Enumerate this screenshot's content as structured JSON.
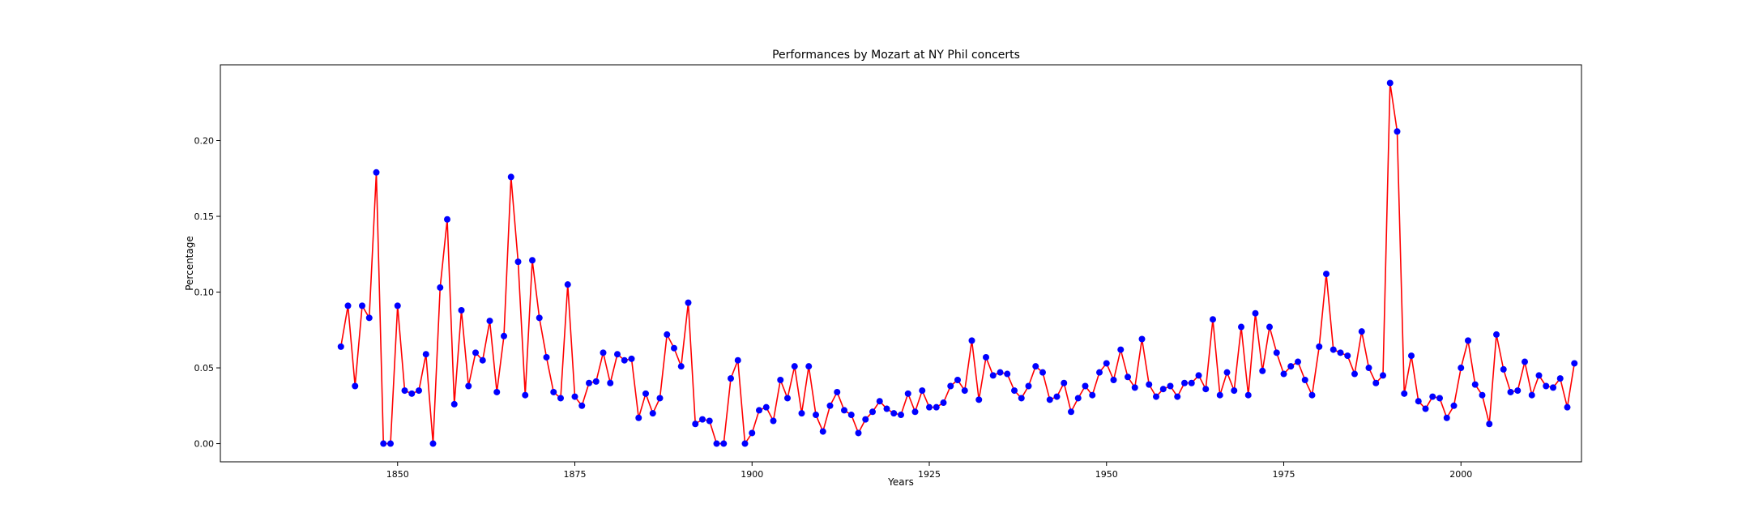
{
  "chart_data": {
    "type": "line",
    "title": "Performances by Mozart at NY Phil concerts",
    "xlabel": "Years",
    "ylabel": "Percentage",
    "xlim": [
      1825,
      2017
    ],
    "ylim": [
      -0.012,
      0.25
    ],
    "xticks": [
      "1850",
      "1875",
      "1900",
      "1925",
      "1950",
      "1975",
      "2000"
    ],
    "yticks": [
      "0.00",
      "0.05",
      "0.10",
      "0.15",
      "0.20"
    ],
    "grid": false,
    "legend": "none",
    "line_color": "#ff0000",
    "marker_color": "#0000ff",
    "x_start": 1842,
    "x_end": 2016,
    "values": [
      0.064,
      0.091,
      0.038,
      0.091,
      0.083,
      0.179,
      0.0,
      0.0,
      0.091,
      0.035,
      0.033,
      0.035,
      0.059,
      0.0,
      0.103,
      0.148,
      0.026,
      0.088,
      0.038,
      0.06,
      0.055,
      0.081,
      0.034,
      0.071,
      0.176,
      0.12,
      0.032,
      0.121,
      0.083,
      0.057,
      0.034,
      0.03,
      0.105,
      0.031,
      0.025,
      0.04,
      0.041,
      0.06,
      0.04,
      0.059,
      0.055,
      0.056,
      0.017,
      0.033,
      0.02,
      0.03,
      0.072,
      0.063,
      0.051,
      0.093,
      0.013,
      0.016,
      0.015,
      0.0,
      0.0,
      0.043,
      0.055,
      0.0,
      0.007,
      0.022,
      0.024,
      0.015,
      0.042,
      0.03,
      0.051,
      0.02,
      0.051,
      0.019,
      0.008,
      0.025,
      0.034,
      0.022,
      0.019,
      0.007,
      0.016,
      0.021,
      0.028,
      0.023,
      0.02,
      0.019,
      0.033,
      0.021,
      0.035,
      0.024,
      0.024,
      0.027,
      0.038,
      0.042,
      0.035,
      0.068,
      0.029,
      0.057,
      0.045,
      0.047,
      0.046,
      0.035,
      0.03,
      0.038,
      0.051,
      0.047,
      0.029,
      0.031,
      0.04,
      0.021,
      0.03,
      0.038,
      0.032,
      0.047,
      0.053,
      0.042,
      0.062,
      0.044,
      0.037,
      0.069,
      0.039,
      0.031,
      0.036,
      0.038,
      0.031,
      0.04,
      0.04,
      0.045,
      0.036,
      0.082,
      0.032,
      0.047,
      0.035,
      0.077,
      0.032,
      0.086,
      0.048,
      0.077,
      0.06,
      0.046,
      0.051,
      0.054,
      0.042,
      0.032,
      0.064,
      0.112,
      0.062,
      0.06,
      0.058,
      0.046,
      0.074,
      0.05,
      0.04,
      0.045,
      0.238,
      0.206,
      0.033,
      0.058,
      0.028,
      0.023,
      0.031,
      0.03,
      0.017,
      0.025,
      0.05,
      0.068,
      0.039,
      0.032,
      0.013,
      0.072,
      0.049,
      0.034,
      0.035,
      0.054,
      0.032,
      0.045,
      0.038,
      0.037,
      0.043,
      0.024,
      0.053
    ]
  }
}
